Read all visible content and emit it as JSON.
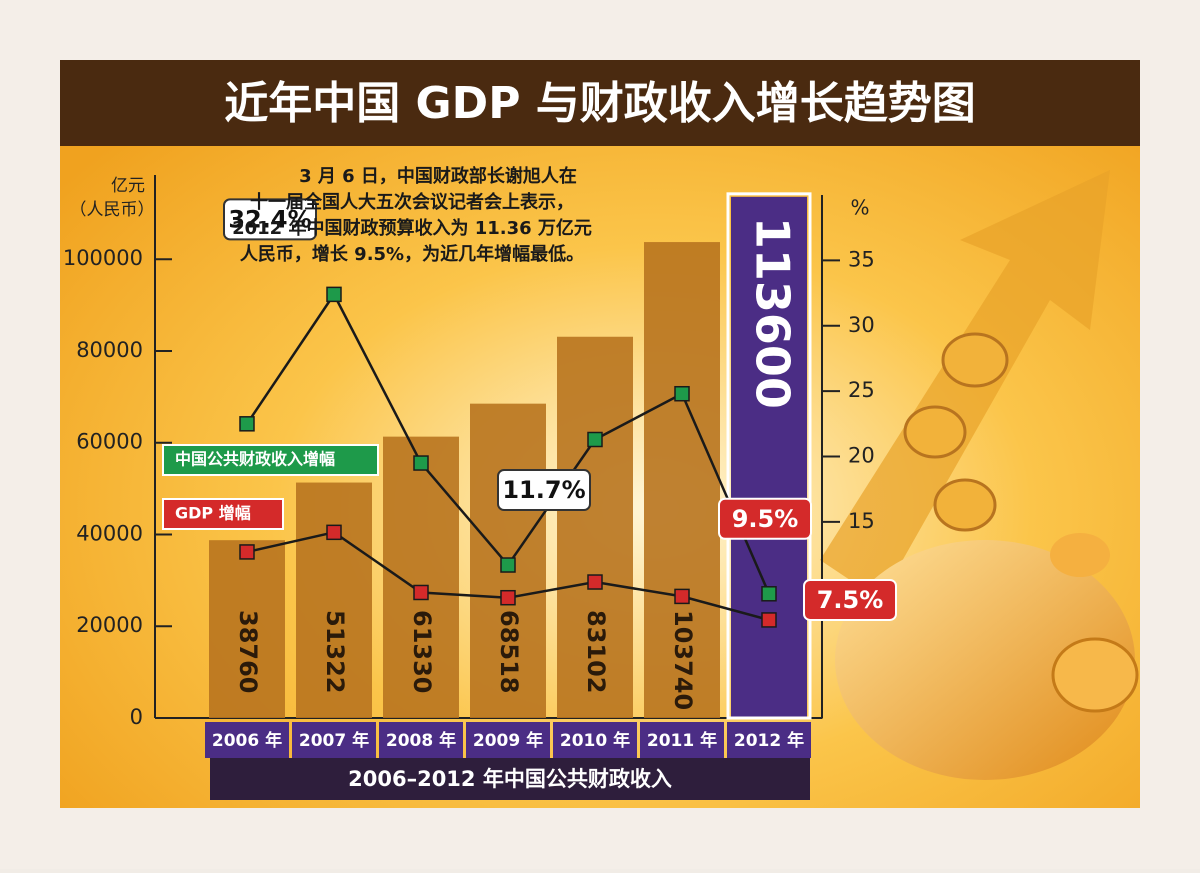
{
  "chart_data": {
    "type": "bar_line",
    "title": "近年中国 GDP 与财政收入增长趋势图",
    "annotation": [
      "3 月 6 日，中国财政部长谢旭人在",
      "十一届全国人大五次会议记者会上表示，",
      "2012 年中国财政预算收入为 11.36 万亿元",
      "人民币，增长 9.5%，为近几年增幅最低。"
    ],
    "y_label": [
      "亿元",
      "（人民币）"
    ],
    "y2_label": "%",
    "x_label": "2006–2012 年中国公共财政收入",
    "categories": [
      "2006 年",
      "2007 年",
      "2008 年",
      "2009 年",
      "2010 年",
      "2011 年",
      "2012 年"
    ],
    "values": [
      38760,
      51322,
      61330,
      68518,
      83102,
      103740,
      113600
    ],
    "bar_colors": [
      "#b8741f",
      "#b8741f",
      "#b8741f",
      "#b8741f",
      "#b8741f",
      "#b8741f",
      "#4b2d85"
    ],
    "ylim": [
      0,
      114000
    ],
    "yticks": [
      0,
      20000,
      40000,
      60000,
      80000,
      100000
    ],
    "y2lim": [
      0,
      40
    ],
    "y2ticks": [
      15,
      20,
      25,
      30,
      35
    ],
    "series": [
      {
        "name": "中国公共财政收入增幅",
        "color": "#1e9a4a",
        "axis": "y2",
        "values": [
          22.5,
          32.4,
          19.5,
          11.7,
          21.3,
          24.8,
          9.5
        ],
        "value_labels": [
          null,
          "32.4%",
          null,
          "11.7%",
          null,
          null,
          "9.5%"
        ]
      },
      {
        "name": "GDP 增幅",
        "color": "#d42a2a",
        "axis": "y2",
        "values": [
          12.7,
          14.2,
          9.6,
          9.2,
          10.4,
          9.3,
          7.5
        ],
        "value_labels": [
          null,
          null,
          null,
          null,
          null,
          null,
          "7.5%"
        ]
      }
    ]
  }
}
